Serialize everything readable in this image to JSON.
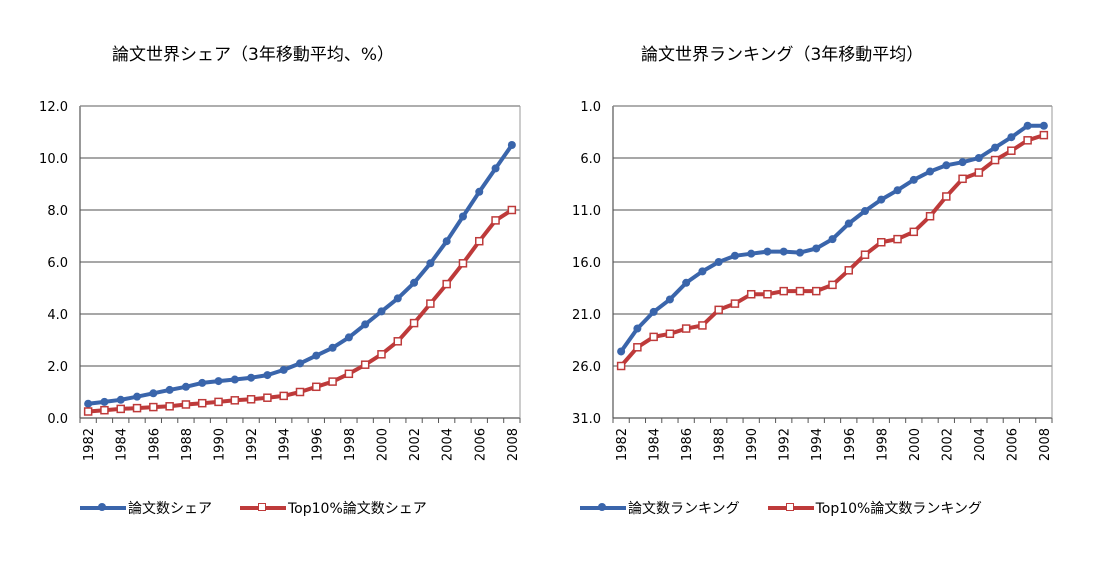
{
  "chart_data": [
    {
      "type": "line",
      "title": "論文世界シェア（3年移動平均、%）",
      "ylim": [
        0,
        12
      ],
      "yticks": [
        "12.0",
        "10.0",
        "8.0",
        "6.0",
        "4.0",
        "2.0",
        "0.0"
      ],
      "x": [
        1982,
        1983,
        1984,
        1985,
        1986,
        1987,
        1988,
        1989,
        1990,
        1991,
        1992,
        1993,
        1994,
        1995,
        1996,
        1997,
        1998,
        1999,
        2000,
        2001,
        2002,
        2003,
        2004,
        2005,
        2006,
        2007,
        2008
      ],
      "xticks": [
        "1982",
        "1984",
        "1986",
        "1988",
        "1990",
        "1992",
        "1994",
        "1996",
        "1998",
        "2000",
        "2002",
        "2004",
        "2006",
        "2008"
      ],
      "grid": true,
      "legend": "bottom",
      "series": [
        {
          "name": "論文数シェア",
          "color": "#3a65ab",
          "marker": "circle",
          "values": [
            0.55,
            0.62,
            0.7,
            0.82,
            0.95,
            1.08,
            1.2,
            1.35,
            1.42,
            1.48,
            1.55,
            1.65,
            1.85,
            2.1,
            2.4,
            2.7,
            3.1,
            3.6,
            4.1,
            4.6,
            5.2,
            5.95,
            6.8,
            7.75,
            8.7,
            9.6,
            10.5
          ]
        },
        {
          "name": "Top10%論文数シェア",
          "color": "#be3a3a",
          "marker": "square",
          "values": [
            0.25,
            0.3,
            0.35,
            0.38,
            0.42,
            0.45,
            0.52,
            0.57,
            0.62,
            0.68,
            0.72,
            0.78,
            0.85,
            1.0,
            1.2,
            1.4,
            1.7,
            2.05,
            2.45,
            2.95,
            3.65,
            4.4,
            5.15,
            5.95,
            6.8,
            7.6,
            8.0
          ]
        }
      ]
    },
    {
      "type": "line",
      "title": "論文世界ランキング（3年移動平均）",
      "ylim": [
        31,
        1
      ],
      "inverted": true,
      "yticks": [
        "1.0",
        "6.0",
        "11.0",
        "16.0",
        "21.0",
        "26.0",
        "31.0"
      ],
      "x": [
        1982,
        1983,
        1984,
        1985,
        1986,
        1987,
        1988,
        1989,
        1990,
        1991,
        1992,
        1993,
        1994,
        1995,
        1996,
        1997,
        1998,
        1999,
        2000,
        2001,
        2002,
        2003,
        2004,
        2005,
        2006,
        2007,
        2008
      ],
      "xticks": [
        "1982",
        "1984",
        "1986",
        "1988",
        "1990",
        "1992",
        "1994",
        "1996",
        "1998",
        "2000",
        "2002",
        "2004",
        "2006",
        "2008"
      ],
      "grid": true,
      "legend": "bottom",
      "series": [
        {
          "name": "論文数ランキング",
          "color": "#3a65ab",
          "marker": "circle",
          "values": [
            24.6,
            22.4,
            20.8,
            19.6,
            18.0,
            16.9,
            16.0,
            15.4,
            15.2,
            15.0,
            15.0,
            15.1,
            14.7,
            13.8,
            12.3,
            11.1,
            10.0,
            9.1,
            8.1,
            7.3,
            6.7,
            6.4,
            6.0,
            5.0,
            4.0,
            2.9,
            2.9
          ]
        },
        {
          "name": "Top10%論文数ランキング",
          "color": "#be3a3a",
          "marker": "square",
          "values": [
            26.0,
            24.2,
            23.2,
            22.9,
            22.4,
            22.1,
            20.6,
            20.0,
            19.1,
            19.1,
            18.8,
            18.8,
            18.8,
            18.2,
            16.8,
            15.3,
            14.1,
            13.8,
            13.1,
            11.6,
            9.7,
            8.0,
            7.4,
            6.2,
            5.3,
            4.3,
            3.8
          ]
        }
      ]
    }
  ]
}
